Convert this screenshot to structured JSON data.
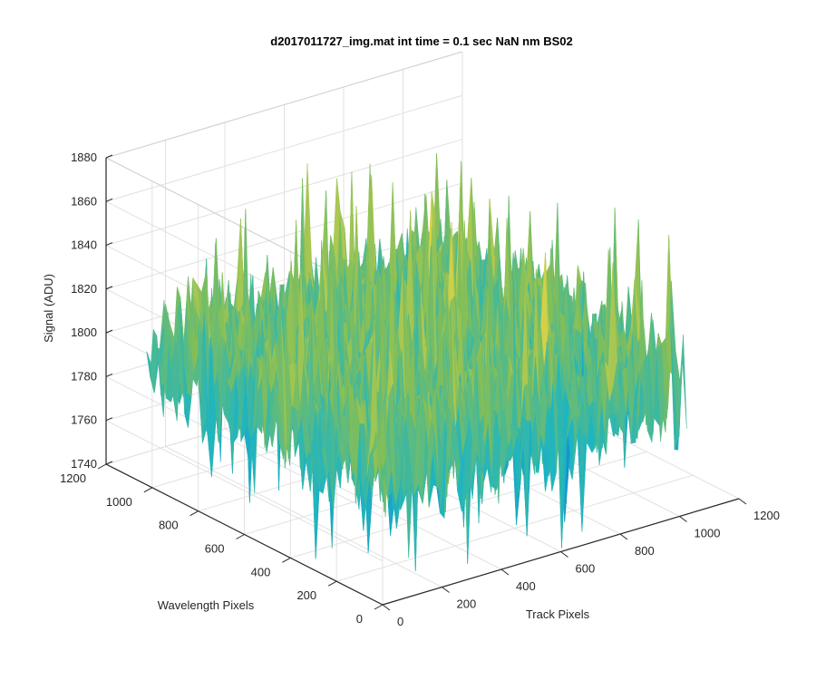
{
  "chart_data": {
    "type": "surface",
    "title": "d2017011727_img.mat int time = 0.1 sec  NaN nm BS02",
    "xlabel": "Track Pixels",
    "ylabel": "Wavelength Pixels",
    "zlabel": "Signal (ADU)",
    "xlim": [
      0,
      1200
    ],
    "ylim": [
      0,
      1200
    ],
    "zlim": [
      1740,
      1880
    ],
    "xticks": [
      "0",
      "200",
      "400",
      "600",
      "800",
      "1000",
      "1200"
    ],
    "yticks": [
      "0",
      "200",
      "400",
      "600",
      "800",
      "1000",
      "1200"
    ],
    "zticks": [
      "1740",
      "1760",
      "1780",
      "1800",
      "1820",
      "1840",
      "1860",
      "1880"
    ],
    "grid": true,
    "surface": {
      "x_range": [
        0,
        1024
      ],
      "y_range": [
        0,
        1024
      ],
      "baseline_mean": 1800,
      "typical_range": [
        1760,
        1840
      ],
      "peak_max": 1865,
      "colormap": "parula"
    },
    "colors": {
      "low": "#0f7fd6",
      "mid": "#1fb5c0",
      "high": "#a7c33e",
      "peak": "#e3d545"
    }
  }
}
